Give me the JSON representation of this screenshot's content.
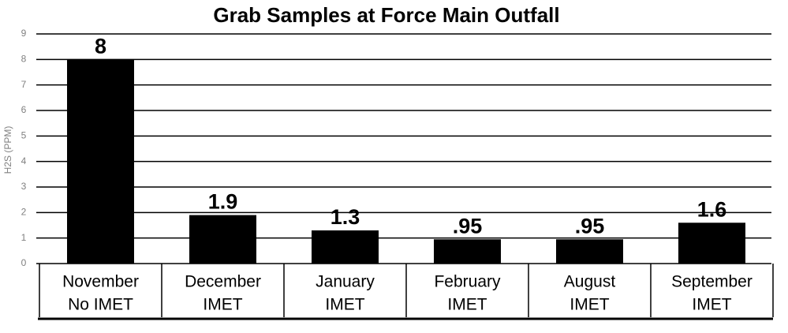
{
  "chart_data": {
    "type": "bar",
    "title": "Grab Samples at Force Main Outfall",
    "ylabel": "H2S (PPM)",
    "categories": [
      [
        "November",
        "No IMET"
      ],
      [
        "December",
        "IMET"
      ],
      [
        "January",
        "IMET"
      ],
      [
        "February",
        "IMET"
      ],
      [
        "August",
        "IMET"
      ],
      [
        "September",
        "IMET"
      ]
    ],
    "values": [
      8,
      1.9,
      1.3,
      0.95,
      0.95,
      1.6
    ],
    "value_labels": [
      "8",
      "1.9",
      "1.3",
      ".95",
      ".95",
      "1.6"
    ],
    "color": "#000000",
    "ylim": [
      0,
      9
    ],
    "yticks": [
      0,
      1,
      2,
      3,
      4,
      5,
      6,
      7,
      8,
      9
    ],
    "grid": true
  }
}
